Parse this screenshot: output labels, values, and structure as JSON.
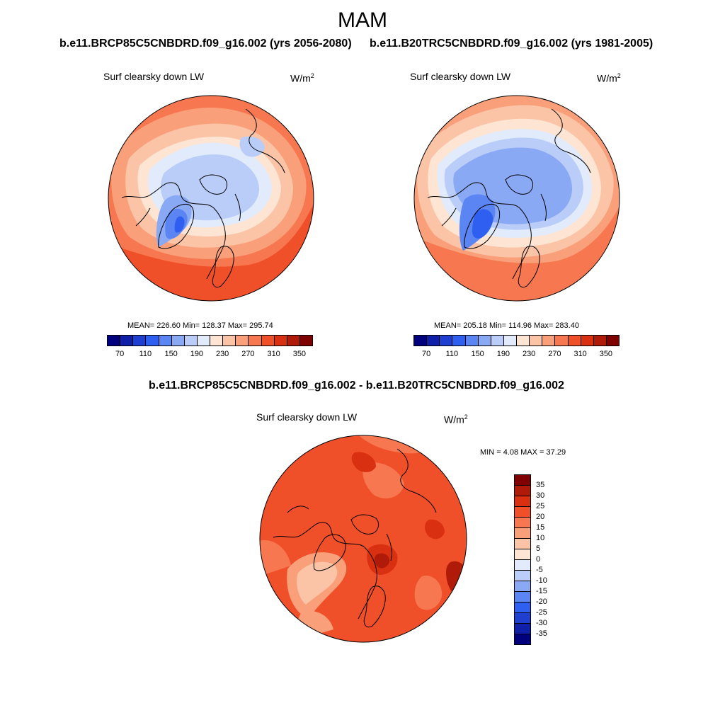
{
  "figure": {
    "season": "MAM",
    "exp_header": "b.e11.BRCP85C5CNBDRD.f09_g16.002 (yrs 2056-2080)",
    "ctrl_header": "b.e11.B20TRC5CNBDRD.f09_g16.002 (yrs 1981-2005)",
    "diff_header": "b.e11.BRCP85C5CNBDRD.f09_g16.002 - b.e11.B20TRC5CNBDRD.f09_g16.002"
  },
  "panels": {
    "exp": {
      "variable": "Surf clearsky down LW",
      "units_base": "W/m",
      "units_exp": "2",
      "stats": "MEAN= 226.60  Min= 128.37  Max= 295.74"
    },
    "ctrl": {
      "variable": "Surf clearsky down LW",
      "units_base": "W/m",
      "units_exp": "2",
      "stats": "MEAN= 205.18  Min= 114.96  Max= 283.40"
    },
    "diff": {
      "variable": "Surf clearsky down LW",
      "units_base": "W/m",
      "units_exp": "2",
      "minmax": "MIN =   4.08 MAX =  37.29"
    }
  },
  "colorbar_abs": {
    "colors": [
      "#00007f",
      "#0f1fa8",
      "#1f3fd0",
      "#2f5ff0",
      "#5a85f3",
      "#8aa9f5",
      "#b9cdf8",
      "#e1ebfb",
      "#fde4d3",
      "#fbc4a6",
      "#f9a07a",
      "#f77850",
      "#ef5029",
      "#d93012",
      "#b01a08",
      "#7f0000"
    ],
    "tick_labels": [
      "70",
      "110",
      "150",
      "190",
      "230",
      "270",
      "310",
      "350"
    ]
  },
  "colorbar_diff": {
    "colors": [
      "#7f0000",
      "#b01a08",
      "#d93012",
      "#ef5029",
      "#f77850",
      "#f9a07a",
      "#fbc4a6",
      "#fde4d3",
      "#e1ebfb",
      "#b9cdf8",
      "#8aa9f5",
      "#5a85f3",
      "#2f5ff0",
      "#1f3fd0",
      "#0f1fa8",
      "#00007f"
    ],
    "tick_labels": [
      "35",
      "30",
      "25",
      "20",
      "15",
      "10",
      "5",
      "0",
      "-5",
      "-10",
      "-15",
      "-20",
      "-25",
      "-30",
      "-35"
    ]
  },
  "map_colors": {
    "ocean_warm": "#f77850",
    "deep_warm": "#ef5029",
    "mid_warm": "#f9a07a",
    "light_warm": "#fbc4a6",
    "pale_warm": "#fde4d3",
    "pale_cool": "#e1ebfb",
    "light_cool": "#b9cdf8",
    "mid_cool": "#8aa9f5",
    "cool": "#5a85f3",
    "deep_cool": "#2f5ff0",
    "diff_base": "#ef5029",
    "diff_dark": "#d93012",
    "diff_darkest": "#b01a08",
    "diff_light": "#f77850",
    "diff_pale": "#f9a07a",
    "diff_palest": "#fbc4a6"
  }
}
